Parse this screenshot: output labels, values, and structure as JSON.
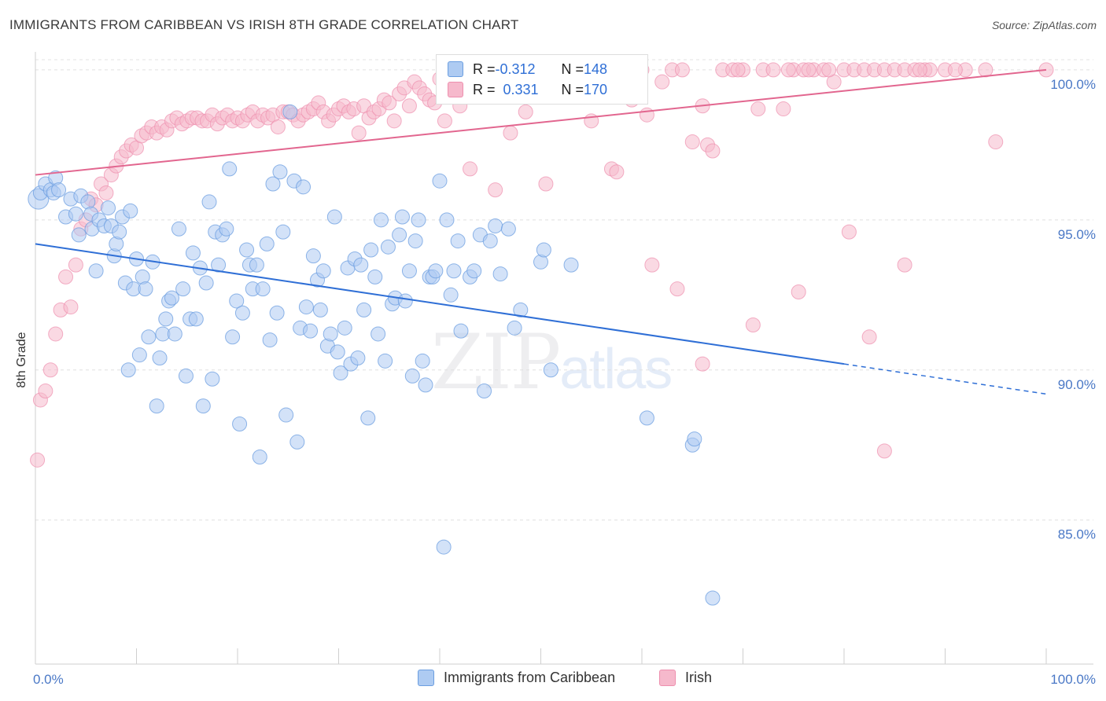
{
  "title": "IMMIGRANTS FROM CARIBBEAN VS IRISH 8TH GRADE CORRELATION CHART",
  "source": "Source: ZipAtlas.com",
  "watermark": {
    "zip": "ZIP",
    "atlas": "atlas"
  },
  "legend_top": {
    "row1": {
      "r_label": "R = ",
      "r_value": "-0.312",
      "n_label": "N = ",
      "n_value": "148"
    },
    "row2": {
      "r_label": "R = ",
      "r_value": "0.331",
      "n_label": "N = ",
      "n_value": "170"
    }
  },
  "legend_bottom": {
    "s1": "Immigrants from Caribbean",
    "s2": "Irish"
  },
  "colors": {
    "blue_fill": "#aecbf2",
    "blue_stroke": "#6b9ee0",
    "blue_line": "#2f6fd6",
    "pink_fill": "#f6b9cc",
    "pink_stroke": "#ee8fae",
    "pink_line": "#e2668f"
  },
  "chart_data": {
    "type": "scatter",
    "title": "IMMIGRANTS FROM CARIBBEAN VS IRISH 8TH GRADE CORRELATION CHART",
    "ylabel": "8th Grade",
    "xlabel": "",
    "xlim": [
      0,
      100
    ],
    "ylim": [
      80.2,
      100.6
    ],
    "x_tick_labels": [
      "0.0%",
      "100.0%"
    ],
    "y_ticks": [
      85,
      90,
      95,
      100
    ],
    "y_tick_labels": [
      "85.0%",
      "90.0%",
      "95.0%",
      "100.0%"
    ],
    "grid": true,
    "series": [
      {
        "name": "Immigrants from Caribbean",
        "r": -0.312,
        "n": 148,
        "trend": {
          "x0": 0,
          "y0": 94.2,
          "x1": 80,
          "y1": 90.2,
          "dash_to_x": 100,
          "dash_to_y": 89.2
        },
        "points": [
          [
            0.3,
            95.7
          ],
          [
            0.5,
            95.9
          ],
          [
            1.0,
            96.2
          ],
          [
            1.5,
            96.0
          ],
          [
            2.0,
            96.4
          ],
          [
            1.8,
            95.9
          ],
          [
            2.3,
            96.0
          ],
          [
            3.0,
            95.1
          ],
          [
            3.5,
            95.7
          ],
          [
            4.0,
            95.2
          ],
          [
            4.3,
            94.5
          ],
          [
            4.5,
            95.8
          ],
          [
            5.2,
            95.6
          ],
          [
            5.5,
            95.2
          ],
          [
            5.6,
            94.7
          ],
          [
            6.0,
            93.3
          ],
          [
            6.3,
            95.0
          ],
          [
            6.8,
            94.8
          ],
          [
            7.2,
            95.4
          ],
          [
            7.5,
            94.8
          ],
          [
            7.8,
            93.8
          ],
          [
            8.0,
            94.2
          ],
          [
            8.3,
            94.6
          ],
          [
            8.6,
            95.1
          ],
          [
            8.9,
            92.9
          ],
          [
            9.2,
            90.0
          ],
          [
            9.4,
            95.3
          ],
          [
            9.7,
            92.7
          ],
          [
            10.0,
            93.7
          ],
          [
            10.3,
            90.5
          ],
          [
            10.6,
            93.1
          ],
          [
            10.9,
            92.7
          ],
          [
            11.2,
            91.1
          ],
          [
            11.6,
            93.6
          ],
          [
            12.0,
            88.8
          ],
          [
            12.3,
            90.4
          ],
          [
            12.6,
            91.2
          ],
          [
            12.9,
            91.7
          ],
          [
            13.2,
            92.3
          ],
          [
            13.5,
            92.4
          ],
          [
            13.8,
            91.2
          ],
          [
            14.2,
            94.7
          ],
          [
            14.6,
            92.7
          ],
          [
            14.9,
            89.8
          ],
          [
            15.3,
            91.7
          ],
          [
            15.6,
            93.9
          ],
          [
            15.9,
            91.7
          ],
          [
            16.3,
            93.4
          ],
          [
            16.6,
            88.8
          ],
          [
            16.9,
            92.9
          ],
          [
            17.2,
            95.6
          ],
          [
            17.5,
            89.7
          ],
          [
            17.8,
            94.6
          ],
          [
            18.1,
            93.5
          ],
          [
            18.5,
            94.5
          ],
          [
            18.9,
            94.7
          ],
          [
            19.2,
            96.7
          ],
          [
            19.5,
            91.1
          ],
          [
            19.9,
            92.3
          ],
          [
            20.2,
            88.2
          ],
          [
            20.5,
            91.9
          ],
          [
            20.9,
            94.0
          ],
          [
            21.2,
            93.5
          ],
          [
            21.5,
            92.7
          ],
          [
            21.9,
            93.5
          ],
          [
            22.2,
            87.1
          ],
          [
            22.5,
            92.7
          ],
          [
            22.9,
            94.2
          ],
          [
            23.2,
            91.0
          ],
          [
            23.5,
            96.2
          ],
          [
            23.9,
            91.9
          ],
          [
            24.2,
            96.6
          ],
          [
            24.5,
            94.6
          ],
          [
            24.8,
            88.5
          ],
          [
            25.2,
            98.6
          ],
          [
            25.6,
            96.3
          ],
          [
            25.9,
            87.6
          ],
          [
            26.2,
            91.4
          ],
          [
            26.5,
            96.1
          ],
          [
            26.8,
            92.1
          ],
          [
            27.2,
            91.3
          ],
          [
            27.5,
            93.8
          ],
          [
            27.9,
            93.0
          ],
          [
            28.2,
            92.0
          ],
          [
            28.5,
            93.3
          ],
          [
            28.9,
            90.8
          ],
          [
            29.2,
            91.2
          ],
          [
            29.6,
            95.1
          ],
          [
            29.9,
            90.6
          ],
          [
            30.2,
            89.9
          ],
          [
            30.6,
            91.4
          ],
          [
            30.9,
            93.4
          ],
          [
            31.2,
            90.2
          ],
          [
            31.6,
            93.7
          ],
          [
            31.9,
            90.4
          ],
          [
            32.2,
            93.5
          ],
          [
            32.5,
            92.0
          ],
          [
            32.9,
            88.4
          ],
          [
            33.2,
            94.0
          ],
          [
            33.6,
            93.1
          ],
          [
            33.9,
            91.2
          ],
          [
            34.2,
            95.0
          ],
          [
            34.6,
            90.3
          ],
          [
            34.9,
            94.1
          ],
          [
            35.3,
            92.2
          ],
          [
            35.6,
            92.4
          ],
          [
            36.0,
            94.5
          ],
          [
            36.3,
            95.1
          ],
          [
            36.6,
            92.3
          ],
          [
            37.0,
            93.3
          ],
          [
            37.3,
            89.8
          ],
          [
            37.6,
            94.3
          ],
          [
            37.9,
            95.0
          ],
          [
            38.3,
            90.3
          ],
          [
            38.6,
            89.5
          ],
          [
            39.0,
            93.1
          ],
          [
            39.3,
            93.1
          ],
          [
            39.6,
            93.3
          ],
          [
            40.0,
            96.3
          ],
          [
            40.4,
            84.1
          ],
          [
            40.7,
            95.0
          ],
          [
            41.1,
            92.5
          ],
          [
            41.4,
            93.3
          ],
          [
            41.8,
            94.3
          ],
          [
            42.1,
            91.3
          ],
          [
            43.0,
            93.1
          ],
          [
            43.4,
            93.3
          ],
          [
            44.0,
            94.5
          ],
          [
            44.4,
            89.3
          ],
          [
            45.0,
            94.3
          ],
          [
            45.5,
            94.8
          ],
          [
            46.0,
            93.2
          ],
          [
            46.8,
            94.7
          ],
          [
            47.4,
            91.4
          ],
          [
            48.0,
            92.0
          ],
          [
            50.0,
            93.6
          ],
          [
            50.3,
            94.0
          ],
          [
            51.0,
            90.0
          ],
          [
            53.0,
            93.5
          ],
          [
            60.5,
            88.4
          ],
          [
            65.0,
            87.5
          ],
          [
            65.2,
            87.7
          ],
          [
            67.0,
            82.4
          ]
        ]
      },
      {
        "name": "Irish",
        "r": 0.331,
        "n": 170,
        "trend": {
          "x0": 0,
          "y0": 96.5,
          "x1": 100,
          "y1": 100.0
        },
        "points": [
          [
            0.2,
            87.0
          ],
          [
            0.5,
            89.0
          ],
          [
            1.0,
            89.3
          ],
          [
            1.5,
            90.0
          ],
          [
            2.0,
            91.2
          ],
          [
            2.5,
            92.0
          ],
          [
            3.0,
            93.1
          ],
          [
            3.5,
            92.1
          ],
          [
            4.0,
            93.5
          ],
          [
            4.5,
            94.7
          ],
          [
            5.0,
            95.0
          ],
          [
            5.5,
            95.7
          ],
          [
            6.0,
            95.5
          ],
          [
            6.5,
            96.2
          ],
          [
            7.0,
            95.9
          ],
          [
            7.5,
            96.5
          ],
          [
            8.0,
            96.8
          ],
          [
            8.5,
            97.1
          ],
          [
            9.0,
            97.3
          ],
          [
            9.5,
            97.5
          ],
          [
            10.0,
            97.4
          ],
          [
            10.5,
            97.8
          ],
          [
            11.0,
            97.9
          ],
          [
            11.5,
            98.1
          ],
          [
            12.0,
            97.9
          ],
          [
            12.5,
            98.1
          ],
          [
            13.0,
            98.0
          ],
          [
            13.5,
            98.3
          ],
          [
            14.0,
            98.4
          ],
          [
            14.5,
            98.2
          ],
          [
            15.0,
            98.3
          ],
          [
            15.5,
            98.4
          ],
          [
            16.0,
            98.4
          ],
          [
            16.5,
            98.3
          ],
          [
            17.0,
            98.3
          ],
          [
            17.5,
            98.5
          ],
          [
            18.0,
            98.2
          ],
          [
            18.5,
            98.4
          ],
          [
            19.0,
            98.5
          ],
          [
            19.5,
            98.3
          ],
          [
            20.0,
            98.4
          ],
          [
            20.5,
            98.3
          ],
          [
            21.0,
            98.5
          ],
          [
            21.5,
            98.6
          ],
          [
            22.0,
            98.3
          ],
          [
            22.5,
            98.5
          ],
          [
            23.0,
            98.4
          ],
          [
            23.5,
            98.5
          ],
          [
            24.0,
            98.1
          ],
          [
            24.5,
            98.6
          ],
          [
            25.0,
            98.6
          ],
          [
            25.5,
            98.5
          ],
          [
            26.0,
            98.3
          ],
          [
            26.5,
            98.5
          ],
          [
            27.0,
            98.6
          ],
          [
            27.5,
            98.7
          ],
          [
            28.0,
            98.9
          ],
          [
            28.5,
            98.6
          ],
          [
            29.0,
            98.3
          ],
          [
            29.5,
            98.5
          ],
          [
            30.0,
            98.7
          ],
          [
            30.5,
            98.8
          ],
          [
            31.0,
            98.6
          ],
          [
            31.5,
            98.7
          ],
          [
            32.0,
            97.9
          ],
          [
            32.5,
            98.8
          ],
          [
            33.0,
            98.4
          ],
          [
            33.5,
            98.6
          ],
          [
            34.0,
            98.7
          ],
          [
            34.5,
            99.0
          ],
          [
            35.0,
            98.9
          ],
          [
            35.5,
            98.3
          ],
          [
            36.0,
            99.2
          ],
          [
            36.5,
            99.4
          ],
          [
            37.0,
            98.8
          ],
          [
            37.5,
            99.6
          ],
          [
            38.0,
            99.4
          ],
          [
            38.5,
            99.2
          ],
          [
            39.0,
            99.0
          ],
          [
            39.5,
            98.9
          ],
          [
            40.0,
            99.7
          ],
          [
            40.5,
            98.3
          ],
          [
            41.0,
            99.2
          ],
          [
            41.5,
            99.6
          ],
          [
            42.0,
            98.8
          ],
          [
            43.0,
            96.7
          ],
          [
            43.5,
            99.4
          ],
          [
            44.0,
            100.0
          ],
          [
            44.5,
            99.1
          ],
          [
            45.0,
            100.0
          ],
          [
            45.5,
            96.0
          ],
          [
            46.0,
            99.8
          ],
          [
            46.5,
            100.0
          ],
          [
            47.0,
            97.9
          ],
          [
            47.5,
            99.4
          ],
          [
            48.0,
            100.0
          ],
          [
            48.5,
            98.6
          ],
          [
            49.0,
            100.0
          ],
          [
            50.0,
            99.6
          ],
          [
            50.5,
            96.2
          ],
          [
            51.0,
            100.0
          ],
          [
            52.0,
            99.8
          ],
          [
            53.0,
            100.0
          ],
          [
            54.0,
            99.7
          ],
          [
            55.0,
            98.3
          ],
          [
            56.0,
            100.0
          ],
          [
            57.0,
            96.7
          ],
          [
            57.5,
            96.6
          ],
          [
            58.0,
            100.0
          ],
          [
            59.0,
            99.0
          ],
          [
            60.0,
            100.0
          ],
          [
            60.5,
            98.5
          ],
          [
            61.0,
            93.5
          ],
          [
            62.0,
            99.6
          ],
          [
            63.0,
            100.0
          ],
          [
            63.5,
            92.7
          ],
          [
            64.0,
            100.0
          ],
          [
            65.0,
            97.6
          ],
          [
            66.0,
            98.8
          ],
          [
            66.5,
            97.5
          ],
          [
            67.0,
            97.3
          ],
          [
            68.0,
            100.0
          ],
          [
            69.0,
            100.0
          ],
          [
            70.0,
            100.0
          ],
          [
            71.0,
            91.5
          ],
          [
            71.5,
            98.7
          ],
          [
            72.0,
            100.0
          ],
          [
            73.0,
            100.0
          ],
          [
            74.0,
            98.7
          ],
          [
            75.0,
            100.0
          ],
          [
            75.5,
            92.6
          ],
          [
            76.0,
            100.0
          ],
          [
            77.0,
            100.0
          ],
          [
            78.0,
            100.0
          ],
          [
            79.0,
            99.6
          ],
          [
            80.0,
            100.0
          ],
          [
            80.5,
            94.6
          ],
          [
            81.0,
            100.0
          ],
          [
            82.0,
            100.0
          ],
          [
            83.0,
            100.0
          ],
          [
            84.0,
            100.0
          ],
          [
            85.0,
            100.0
          ],
          [
            86.0,
            100.0
          ],
          [
            87.0,
            100.0
          ],
          [
            88.0,
            100.0
          ],
          [
            78.5,
            100.0
          ],
          [
            76.5,
            100.0
          ],
          [
            74.5,
            100.0
          ],
          [
            69.5,
            100.0
          ],
          [
            66.0,
            90.2
          ],
          [
            90.0,
            100.0
          ],
          [
            82.5,
            91.1
          ],
          [
            84.0,
            87.3
          ],
          [
            92.0,
            100.0
          ],
          [
            94.0,
            100.0
          ],
          [
            95.0,
            97.6
          ],
          [
            100.0,
            100.0
          ],
          [
            86.0,
            93.5
          ],
          [
            88.5,
            100.0
          ],
          [
            87.5,
            100.0
          ],
          [
            91.0,
            100.0
          ]
        ]
      }
    ]
  }
}
